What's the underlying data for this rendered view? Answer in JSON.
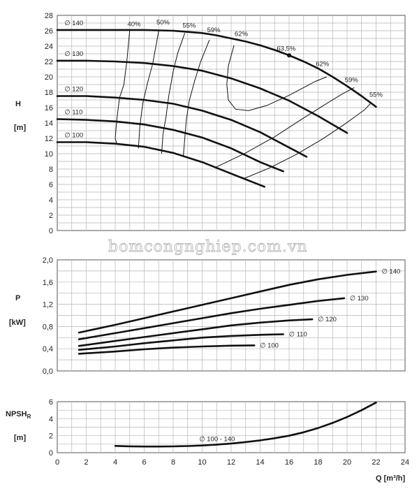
{
  "watermark": "bomcongnghiep.com.vn",
  "chart_data": [
    {
      "type": "line",
      "ylabel": "H",
      "yunit": "[m]",
      "ylim": [
        0,
        28
      ],
      "yticks": [
        0,
        2,
        4,
        6,
        8,
        10,
        12,
        14,
        16,
        18,
        20,
        22,
        24,
        26,
        28
      ],
      "ytick_labels": [
        "0",
        "2",
        "4",
        "6",
        "8",
        "10",
        "12",
        "14",
        "16",
        "18",
        "20",
        "22",
        "24",
        "26",
        "28"
      ],
      "xlim": [
        0,
        24
      ],
      "grid": true,
      "diameter_symbol": "∅",
      "series": [
        {
          "name": "140",
          "x": [
            0,
            2,
            4,
            6,
            8,
            10,
            11,
            12,
            13,
            14,
            15,
            16,
            17,
            18,
            19,
            20,
            21,
            22
          ],
          "y": [
            26.1,
            26.1,
            26.1,
            26.1,
            26,
            25.7,
            25.4,
            25.0,
            24.6,
            24.1,
            23.5,
            22.8,
            22.0,
            21.1,
            20.0,
            18.8,
            17.5,
            16.1
          ]
        },
        {
          "name": "130",
          "x": [
            0,
            2,
            4,
            6,
            8,
            10,
            12,
            14,
            16,
            18,
            19,
            20
          ],
          "y": [
            22.1,
            22.1,
            22.0,
            21.8,
            21.4,
            20.8,
            19.8,
            18.5,
            16.9,
            14.9,
            13.8,
            12.7
          ]
        },
        {
          "name": "120",
          "x": [
            0,
            2,
            4,
            6,
            8,
            10,
            12,
            14,
            16,
            17.2
          ],
          "y": [
            17.5,
            17.5,
            17.3,
            17.0,
            16.5,
            15.6,
            14.4,
            12.8,
            10.8,
            9.6
          ]
        },
        {
          "name": "110",
          "x": [
            0,
            2,
            4,
            6,
            8,
            10,
            12,
            14,
            15.6
          ],
          "y": [
            14.5,
            14.4,
            14.2,
            13.8,
            13.1,
            12.1,
            10.7,
            8.9,
            7.7
          ]
        },
        {
          "name": "100",
          "x": [
            0,
            2,
            4,
            6,
            8,
            10,
            12,
            14.3
          ],
          "y": [
            11.5,
            11.5,
            11.3,
            10.9,
            10.1,
            8.9,
            7.4,
            5.7
          ]
        }
      ],
      "efficiency_curves": [
        {
          "label": "40%",
          "x": [
            5.0,
            4.8,
            4.6,
            4.3,
            4.1,
            4.0,
            4.1
          ],
          "y": [
            26.1,
            22.0,
            19.0,
            17.3,
            14.3,
            12.0,
            11.3
          ]
        },
        {
          "label": "50%",
          "x": [
            7.0,
            6.6,
            6.2,
            5.9,
            5.7,
            5.6
          ],
          "y": [
            26.0,
            21.8,
            19.0,
            16.5,
            13.6,
            10.7
          ]
        },
        {
          "label": "55%",
          "x": [
            8.8,
            8.3,
            8.0,
            7.7,
            7.5,
            7.3,
            7.2
          ],
          "y": [
            25.7,
            23.0,
            20.7,
            17.6,
            14.7,
            12.6,
            10.0
          ]
        },
        {
          "label": "59%",
          "x": [
            10.5,
            9.9,
            9.5,
            9.1,
            8.9,
            8.8,
            8.7
          ],
          "y": [
            24.8,
            22.0,
            19.6,
            16.8,
            14.3,
            12.0,
            9.7
          ]
        },
        {
          "label": "62%",
          "x": [
            12.2,
            11.8,
            11.7,
            11.8,
            12.3,
            13.2,
            14.5,
            16.0,
            17.8,
            18.6
          ],
          "y": [
            24.1,
            21.4,
            19.0,
            17.0,
            15.8,
            15.6,
            16.3,
            17.6,
            19.4,
            20.0
          ]
        },
        {
          "label": "59%",
          "x": [
            10.9,
            13.0,
            15.0,
            16.8,
            18.4,
            19.6,
            20.5
          ],
          "y": [
            8.2,
            10.1,
            12.2,
            14.4,
            16.3,
            17.7,
            18.6
          ]
        },
        {
          "label": "55%",
          "x": [
            12.8,
            14.6,
            16.5,
            18.3,
            19.8,
            21.2,
            21.6
          ],
          "y": [
            6.7,
            8.1,
            9.9,
            11.9,
            13.8,
            15.7,
            16.5
          ]
        }
      ],
      "efficiency_labels": [
        {
          "text": "40%",
          "x": 5.3,
          "y": 26.6
        },
        {
          "text": "50%",
          "x": 7.3,
          "y": 26.8
        },
        {
          "text": "55%",
          "x": 9.1,
          "y": 26.4
        },
        {
          "text": "59%",
          "x": 10.8,
          "y": 25.8
        },
        {
          "text": "62%",
          "x": 12.7,
          "y": 25.3
        },
        {
          "text": "63,5%",
          "x": 15.8,
          "y": 23.4
        },
        {
          "text": "62%",
          "x": 18.3,
          "y": 21.4
        },
        {
          "text": "59%",
          "x": 20.3,
          "y": 19.3
        },
        {
          "text": "55%",
          "x": 22.0,
          "y": 17.4
        }
      ],
      "best_efficiency_point": {
        "x": 16.0,
        "y": 22.8,
        "label": "63,5%"
      }
    },
    {
      "type": "line",
      "ylabel": "P",
      "yunit": "[kW]",
      "ylim": [
        0,
        2.0
      ],
      "yticks": [
        0,
        0.4,
        0.8,
        1.2,
        1.6,
        2.0
      ],
      "ytick_labels": [
        "0,0",
        "0,4",
        "0,8",
        "1,2",
        "1,6",
        "2,0"
      ],
      "xlim": [
        0,
        24
      ],
      "grid": true,
      "series": [
        {
          "name": "140",
          "x": [
            1.5,
            4,
            6,
            8,
            10,
            12,
            14,
            16,
            18,
            20,
            22
          ],
          "y": [
            0.69,
            0.83,
            0.95,
            1.07,
            1.19,
            1.31,
            1.43,
            1.55,
            1.65,
            1.73,
            1.79
          ]
        },
        {
          "name": "130",
          "x": [
            1.5,
            4,
            6,
            8,
            10,
            12,
            14,
            16,
            18,
            19.8
          ],
          "y": [
            0.57,
            0.68,
            0.77,
            0.86,
            0.95,
            1.04,
            1.12,
            1.19,
            1.26,
            1.31
          ]
        },
        {
          "name": "120",
          "x": [
            1.5,
            4,
            6,
            8,
            10,
            12,
            14,
            16,
            17.6
          ],
          "y": [
            0.45,
            0.54,
            0.61,
            0.68,
            0.75,
            0.82,
            0.87,
            0.91,
            0.93
          ]
        },
        {
          "name": "110",
          "x": [
            1.5,
            4,
            6,
            8,
            10,
            12,
            14,
            15.6
          ],
          "y": [
            0.38,
            0.44,
            0.5,
            0.55,
            0.6,
            0.63,
            0.65,
            0.66
          ]
        },
        {
          "name": "100",
          "x": [
            1.5,
            4,
            6,
            8,
            10,
            12,
            13.6
          ],
          "y": [
            0.31,
            0.35,
            0.39,
            0.42,
            0.44,
            0.455,
            0.46
          ]
        }
      ]
    },
    {
      "type": "line",
      "ylabel": "NPSH",
      "ylabel_sub": "R",
      "yunit": "[m]",
      "ylim": [
        0,
        6
      ],
      "yticks": [
        0,
        2,
        4,
        6
      ],
      "ytick_labels": [
        "0",
        "2",
        "4",
        "6"
      ],
      "xlim": [
        0,
        24
      ],
      "xticks": [
        0,
        2,
        4,
        6,
        8,
        10,
        12,
        14,
        16,
        18,
        20,
        22,
        24
      ],
      "xtick_labels": [
        "0",
        "2",
        "4",
        "6",
        "8",
        "10",
        "12",
        "14",
        "16",
        "18",
        "20",
        "22",
        "24"
      ],
      "xlabel": "Q [m³/h]",
      "grid": true,
      "series": [
        {
          "name": "100 - 140",
          "x": [
            4,
            5,
            6,
            7,
            8,
            9,
            10,
            11,
            12,
            13,
            14,
            15,
            16,
            17,
            18,
            19,
            20,
            21,
            22
          ],
          "y": [
            0.8,
            0.75,
            0.72,
            0.72,
            0.74,
            0.78,
            0.85,
            0.95,
            1.08,
            1.25,
            1.45,
            1.7,
            2.0,
            2.4,
            2.9,
            3.5,
            4.2,
            5.0,
            5.9
          ]
        }
      ]
    }
  ]
}
